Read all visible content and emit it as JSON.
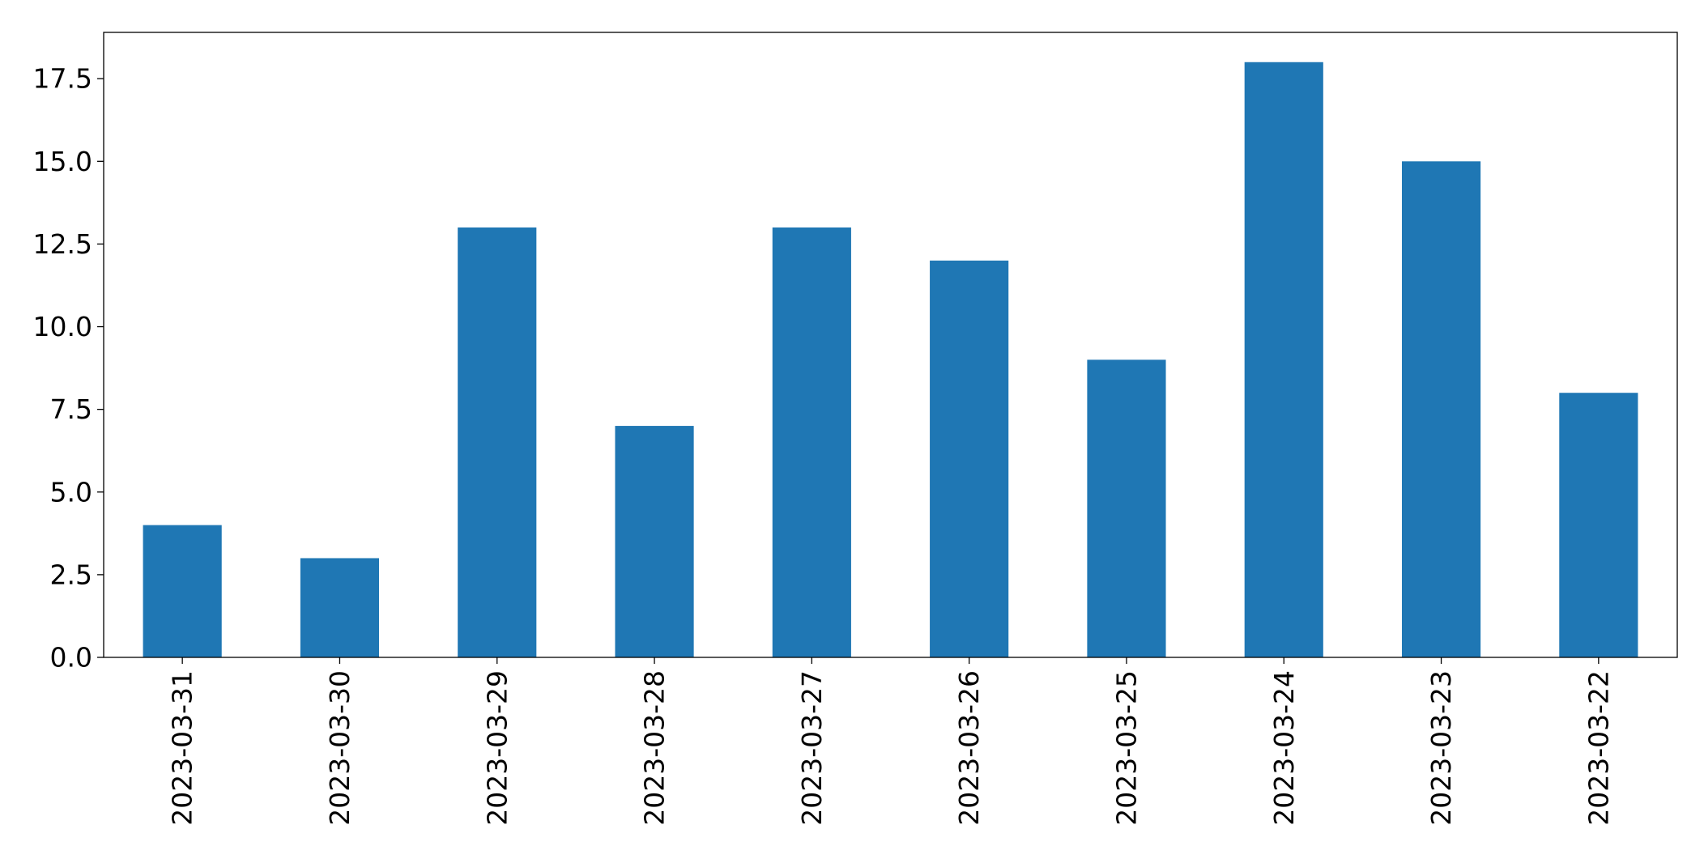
{
  "chart_data": {
    "type": "bar",
    "title": "",
    "xlabel": "",
    "ylabel": "",
    "categories": [
      "2023-03-31",
      "2023-03-30",
      "2023-03-29",
      "2023-03-28",
      "2023-03-27",
      "2023-03-26",
      "2023-03-25",
      "2023-03-24",
      "2023-03-23",
      "2023-03-22"
    ],
    "values": [
      4,
      3,
      13,
      7,
      13,
      12,
      9,
      18,
      15,
      8
    ],
    "ylim": [
      0,
      18.9
    ],
    "yticks": [
      "0.0",
      "2.5",
      "5.0",
      "7.5",
      "10.0",
      "12.5",
      "15.0",
      "17.5"
    ],
    "ytick_values": [
      0,
      2.5,
      5,
      7.5,
      10,
      12.5,
      15,
      17.5
    ],
    "bar_color": "#1f77b4",
    "grid": false,
    "legend": "none"
  }
}
